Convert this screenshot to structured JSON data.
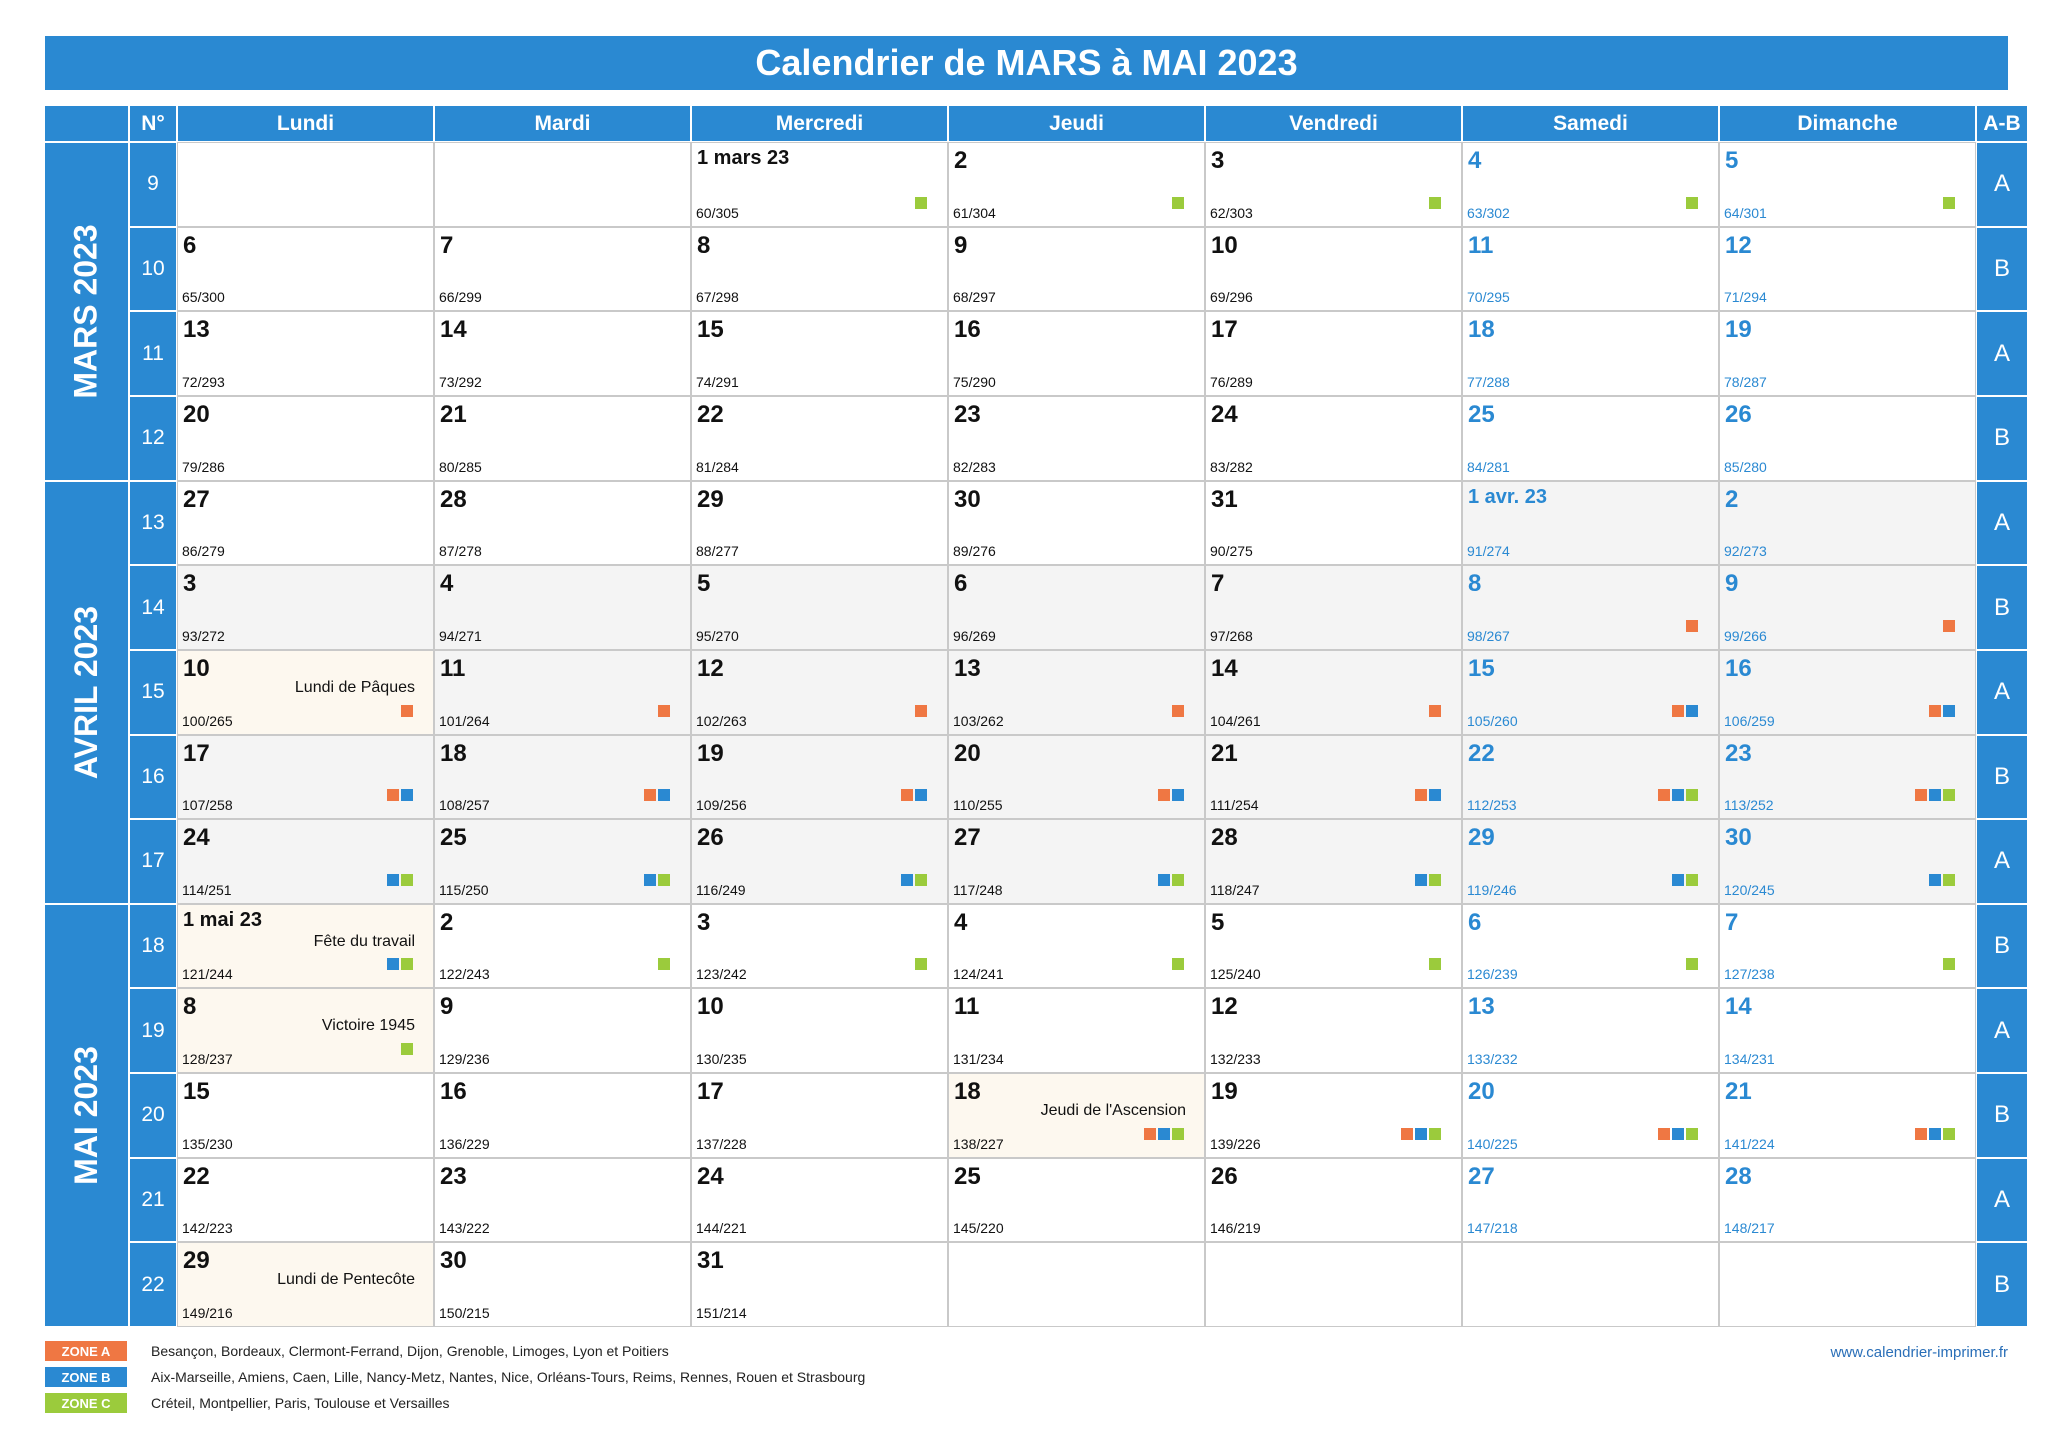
{
  "title": "Calendrier de MARS à MAI 2023",
  "headers": {
    "week_no": "N°",
    "days": [
      "Lundi",
      "Mardi",
      "Mercredi",
      "Jeudi",
      "Vendredi",
      "Samedi",
      "Dimanche"
    ],
    "ab": "A-B"
  },
  "months": [
    {
      "label": "MARS 2023",
      "row_start": 1,
      "row_span": 4
    },
    {
      "label": "AVRIL 2023",
      "row_start": 5,
      "row_span": 5
    },
    {
      "label": "MAI 2023",
      "row_start": 10,
      "row_span": 5
    }
  ],
  "colors": {
    "accent": "#2a89d2",
    "zone_a": "#ef7743",
    "zone_b": "#2a89d2",
    "zone_c": "#9bcb3c"
  },
  "weeks": [
    {
      "no": "9",
      "ab": "A",
      "days": [
        null,
        null,
        {
          "num": "1 mars 23",
          "count": "60/305",
          "zones": [
            "C"
          ],
          "month": "mar"
        },
        {
          "num": "2",
          "count": "61/304",
          "zones": [
            "C"
          ],
          "month": "mar"
        },
        {
          "num": "3",
          "count": "62/303",
          "zones": [
            "C"
          ],
          "month": "mar"
        },
        {
          "num": "4",
          "count": "63/302",
          "zones": [
            "C"
          ],
          "month": "mar"
        },
        {
          "num": "5",
          "count": "64/301",
          "zones": [
            "C"
          ],
          "month": "mar"
        }
      ]
    },
    {
      "no": "10",
      "ab": "B",
      "days": [
        {
          "num": "6",
          "count": "65/300",
          "month": "mar"
        },
        {
          "num": "7",
          "count": "66/299",
          "month": "mar"
        },
        {
          "num": "8",
          "count": "67/298",
          "month": "mar"
        },
        {
          "num": "9",
          "count": "68/297",
          "month": "mar"
        },
        {
          "num": "10",
          "count": "69/296",
          "month": "mar"
        },
        {
          "num": "11",
          "count": "70/295",
          "month": "mar"
        },
        {
          "num": "12",
          "count": "71/294",
          "month": "mar"
        }
      ]
    },
    {
      "no": "11",
      "ab": "A",
      "days": [
        {
          "num": "13",
          "count": "72/293",
          "month": "mar"
        },
        {
          "num": "14",
          "count": "73/292",
          "month": "mar"
        },
        {
          "num": "15",
          "count": "74/291",
          "month": "mar"
        },
        {
          "num": "16",
          "count": "75/290",
          "month": "mar"
        },
        {
          "num": "17",
          "count": "76/289",
          "month": "mar"
        },
        {
          "num": "18",
          "count": "77/288",
          "month": "mar"
        },
        {
          "num": "19",
          "count": "78/287",
          "month": "mar"
        }
      ]
    },
    {
      "no": "12",
      "ab": "B",
      "days": [
        {
          "num": "20",
          "count": "79/286",
          "month": "mar"
        },
        {
          "num": "21",
          "count": "80/285",
          "month": "mar"
        },
        {
          "num": "22",
          "count": "81/284",
          "month": "mar"
        },
        {
          "num": "23",
          "count": "82/283",
          "month": "mar"
        },
        {
          "num": "24",
          "count": "83/282",
          "month": "mar"
        },
        {
          "num": "25",
          "count": "84/281",
          "month": "mar"
        },
        {
          "num": "26",
          "count": "85/280",
          "month": "mar"
        }
      ]
    },
    {
      "no": "13",
      "ab": "A",
      "days": [
        {
          "num": "27",
          "count": "86/279",
          "month": "mar"
        },
        {
          "num": "28",
          "count": "87/278",
          "month": "mar"
        },
        {
          "num": "29",
          "count": "88/277",
          "month": "mar"
        },
        {
          "num": "30",
          "count": "89/276",
          "month": "mar"
        },
        {
          "num": "31",
          "count": "90/275",
          "month": "mar"
        },
        {
          "num": "1 avr. 23",
          "count": "91/274",
          "month": "apr"
        },
        {
          "num": "2",
          "count": "92/273",
          "month": "apr"
        }
      ]
    },
    {
      "no": "14",
      "ab": "B",
      "days": [
        {
          "num": "3",
          "count": "93/272",
          "month": "apr"
        },
        {
          "num": "4",
          "count": "94/271",
          "month": "apr"
        },
        {
          "num": "5",
          "count": "95/270",
          "month": "apr"
        },
        {
          "num": "6",
          "count": "96/269",
          "month": "apr"
        },
        {
          "num": "7",
          "count": "97/268",
          "month": "apr"
        },
        {
          "num": "8",
          "count": "98/267",
          "zones": [
            "A"
          ],
          "month": "apr"
        },
        {
          "num": "9",
          "count": "99/266",
          "zones": [
            "A"
          ],
          "month": "apr"
        }
      ]
    },
    {
      "no": "15",
      "ab": "A",
      "days": [
        {
          "num": "10",
          "count": "100/265",
          "zones": [
            "A"
          ],
          "holiday": "Lundi de Pâques",
          "month": "apr"
        },
        {
          "num": "11",
          "count": "101/264",
          "zones": [
            "A"
          ],
          "month": "apr"
        },
        {
          "num": "12",
          "count": "102/263",
          "zones": [
            "A"
          ],
          "month": "apr"
        },
        {
          "num": "13",
          "count": "103/262",
          "zones": [
            "A"
          ],
          "month": "apr"
        },
        {
          "num": "14",
          "count": "104/261",
          "zones": [
            "A"
          ],
          "month": "apr"
        },
        {
          "num": "15",
          "count": "105/260",
          "zones": [
            "A",
            "B"
          ],
          "month": "apr"
        },
        {
          "num": "16",
          "count": "106/259",
          "zones": [
            "A",
            "B"
          ],
          "month": "apr"
        }
      ]
    },
    {
      "no": "16",
      "ab": "B",
      "days": [
        {
          "num": "17",
          "count": "107/258",
          "zones": [
            "A",
            "B"
          ],
          "month": "apr"
        },
        {
          "num": "18",
          "count": "108/257",
          "zones": [
            "A",
            "B"
          ],
          "month": "apr"
        },
        {
          "num": "19",
          "count": "109/256",
          "zones": [
            "A",
            "B"
          ],
          "month": "apr"
        },
        {
          "num": "20",
          "count": "110/255",
          "zones": [
            "A",
            "B"
          ],
          "month": "apr"
        },
        {
          "num": "21",
          "count": "111/254",
          "zones": [
            "A",
            "B"
          ],
          "month": "apr"
        },
        {
          "num": "22",
          "count": "112/253",
          "zones": [
            "A",
            "B",
            "C"
          ],
          "month": "apr"
        },
        {
          "num": "23",
          "count": "113/252",
          "zones": [
            "A",
            "B",
            "C"
          ],
          "month": "apr"
        }
      ]
    },
    {
      "no": "17",
      "ab": "A",
      "days": [
        {
          "num": "24",
          "count": "114/251",
          "zones": [
            "B",
            "C"
          ],
          "month": "apr"
        },
        {
          "num": "25",
          "count": "115/250",
          "zones": [
            "B",
            "C"
          ],
          "month": "apr"
        },
        {
          "num": "26",
          "count": "116/249",
          "zones": [
            "B",
            "C"
          ],
          "month": "apr"
        },
        {
          "num": "27",
          "count": "117/248",
          "zones": [
            "B",
            "C"
          ],
          "month": "apr"
        },
        {
          "num": "28",
          "count": "118/247",
          "zones": [
            "B",
            "C"
          ],
          "month": "apr"
        },
        {
          "num": "29",
          "count": "119/246",
          "zones": [
            "B",
            "C"
          ],
          "month": "apr"
        },
        {
          "num": "30",
          "count": "120/245",
          "zones": [
            "B",
            "C"
          ],
          "month": "apr"
        }
      ]
    },
    {
      "no": "18",
      "ab": "B",
      "days": [
        {
          "num": "1 mai 23",
          "count": "121/244",
          "zones": [
            "B",
            "C"
          ],
          "holiday": "Fête du travail",
          "month": "may"
        },
        {
          "num": "2",
          "count": "122/243",
          "zones": [
            "C"
          ],
          "month": "may"
        },
        {
          "num": "3",
          "count": "123/242",
          "zones": [
            "C"
          ],
          "month": "may"
        },
        {
          "num": "4",
          "count": "124/241",
          "zones": [
            "C"
          ],
          "month": "may"
        },
        {
          "num": "5",
          "count": "125/240",
          "zones": [
            "C"
          ],
          "month": "may"
        },
        {
          "num": "6",
          "count": "126/239",
          "zones": [
            "C"
          ],
          "month": "may"
        },
        {
          "num": "7",
          "count": "127/238",
          "zones": [
            "C"
          ],
          "month": "may"
        }
      ]
    },
    {
      "no": "19",
      "ab": "A",
      "days": [
        {
          "num": "8",
          "count": "128/237",
          "zones": [
            "C"
          ],
          "holiday": "Victoire 1945",
          "month": "may"
        },
        {
          "num": "9",
          "count": "129/236",
          "month": "may"
        },
        {
          "num": "10",
          "count": "130/235",
          "month": "may"
        },
        {
          "num": "11",
          "count": "131/234",
          "month": "may"
        },
        {
          "num": "12",
          "count": "132/233",
          "month": "may"
        },
        {
          "num": "13",
          "count": "133/232",
          "month": "may"
        },
        {
          "num": "14",
          "count": "134/231",
          "month": "may"
        }
      ]
    },
    {
      "no": "20",
      "ab": "B",
      "days": [
        {
          "num": "15",
          "count": "135/230",
          "month": "may"
        },
        {
          "num": "16",
          "count": "136/229",
          "month": "may"
        },
        {
          "num": "17",
          "count": "137/228",
          "month": "may"
        },
        {
          "num": "18",
          "count": "138/227",
          "zones": [
            "A",
            "B",
            "C"
          ],
          "holiday": "Jeudi de l'Ascension",
          "month": "may"
        },
        {
          "num": "19",
          "count": "139/226",
          "zones": [
            "A",
            "B",
            "C"
          ],
          "month": "may"
        },
        {
          "num": "20",
          "count": "140/225",
          "zones": [
            "A",
            "B",
            "C"
          ],
          "month": "may"
        },
        {
          "num": "21",
          "count": "141/224",
          "zones": [
            "A",
            "B",
            "C"
          ],
          "month": "may"
        }
      ]
    },
    {
      "no": "21",
      "ab": "A",
      "days": [
        {
          "num": "22",
          "count": "142/223",
          "month": "may"
        },
        {
          "num": "23",
          "count": "143/222",
          "month": "may"
        },
        {
          "num": "24",
          "count": "144/221",
          "month": "may"
        },
        {
          "num": "25",
          "count": "145/220",
          "month": "may"
        },
        {
          "num": "26",
          "count": "146/219",
          "month": "may"
        },
        {
          "num": "27",
          "count": "147/218",
          "month": "may"
        },
        {
          "num": "28",
          "count": "148/217",
          "month": "may"
        }
      ]
    },
    {
      "no": "22",
      "ab": "B",
      "days": [
        {
          "num": "29",
          "count": "149/216",
          "holiday": "Lundi de Pentecôte",
          "month": "may"
        },
        {
          "num": "30",
          "count": "150/215",
          "month": "may"
        },
        {
          "num": "31",
          "count": "151/214",
          "month": "may"
        },
        null,
        null,
        null,
        null
      ]
    }
  ],
  "legend": [
    {
      "badge": "ZONE A",
      "zone": "A",
      "text": "Besançon, Bordeaux, Clermont-Ferrand, Dijon, Grenoble, Limoges, Lyon et Poitiers"
    },
    {
      "badge": "ZONE B",
      "zone": "B",
      "text": "Aix-Marseille, Amiens, Caen, Lille, Nancy-Metz, Nantes, Nice, Orléans-Tours, Reims, Rennes, Rouen et Strasbourg"
    },
    {
      "badge": "ZONE C",
      "zone": "C",
      "text": "Créteil, Montpellier, Paris, Toulouse et Versailles"
    }
  ],
  "website": "www.calendrier-imprimer.fr"
}
